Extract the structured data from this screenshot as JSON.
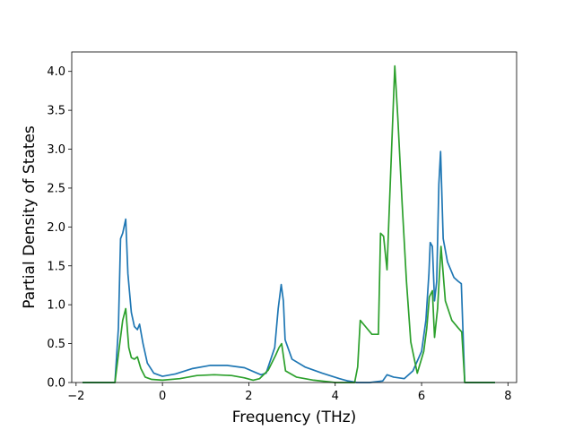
{
  "chart_data": {
    "type": "line",
    "title": "",
    "xlabel": "Frequency (THz)",
    "ylabel": "Partial Density of States",
    "xlim": [
      -2.1,
      8.2
    ],
    "ylim": [
      0,
      4.25
    ],
    "xticks": [
      -2,
      0,
      2,
      4,
      6,
      8
    ],
    "xtick_labels": [
      "−2",
      "0",
      "2",
      "4",
      "6",
      "8"
    ],
    "yticks": [
      0,
      0.5,
      1,
      1.5,
      2,
      2.5,
      3,
      3.5,
      4
    ],
    "ytick_labels": [
      "0.0",
      "0.5",
      "1.0",
      "1.5",
      "2.0",
      "2.5",
      "3.0",
      "3.5",
      "4.0"
    ],
    "grid": false,
    "series": [
      {
        "color": "#1f77b4",
        "x": [
          -1.85,
          -1.1,
          -1.02,
          -0.97,
          -0.92,
          -0.85,
          -0.8,
          -0.72,
          -0.65,
          -0.58,
          -0.53,
          -0.45,
          -0.35,
          -0.2,
          0,
          0.3,
          0.7,
          1.1,
          1.5,
          1.9,
          2.15,
          2.28,
          2.4,
          2.6,
          2.68,
          2.75,
          2.8,
          2.84,
          3.0,
          3.3,
          3.7,
          4.1,
          4.3,
          4.5,
          4.8,
          5.1,
          5.2,
          5.35,
          5.6,
          5.8,
          6.0,
          6.1,
          6.17,
          6.2,
          6.25,
          6.3,
          6.35,
          6.4,
          6.44,
          6.5,
          6.6,
          6.75,
          6.85,
          6.92,
          7.0,
          7.7
        ],
        "y": [
          0,
          0,
          0.7,
          1.85,
          1.92,
          2.1,
          1.4,
          0.9,
          0.72,
          0.68,
          0.75,
          0.5,
          0.25,
          0.12,
          0.08,
          0.11,
          0.18,
          0.22,
          0.22,
          0.19,
          0.13,
          0.1,
          0.12,
          0.45,
          0.95,
          1.26,
          1.05,
          0.55,
          0.3,
          0.2,
          0.12,
          0.05,
          0.02,
          0,
          0,
          0.02,
          0.1,
          0.07,
          0.05,
          0.15,
          0.4,
          0.8,
          1.4,
          1.8,
          1.75,
          1.05,
          1.3,
          2.55,
          2.97,
          1.85,
          1.55,
          1.35,
          1.3,
          1.27,
          0,
          0
        ]
      },
      {
        "color": "#2ca02c",
        "x": [
          -1.85,
          -1.1,
          -1.0,
          -0.92,
          -0.85,
          -0.78,
          -0.72,
          -0.65,
          -0.58,
          -0.5,
          -0.4,
          -0.25,
          0,
          0.4,
          0.8,
          1.2,
          1.6,
          1.9,
          2.1,
          2.25,
          2.45,
          2.62,
          2.7,
          2.76,
          2.85,
          3.1,
          3.5,
          4.0,
          4.45,
          4.52,
          4.58,
          4.7,
          4.85,
          5.0,
          5.05,
          5.12,
          5.2,
          5.25,
          5.38,
          5.45,
          5.55,
          5.65,
          5.75,
          5.9,
          6.05,
          6.12,
          6.18,
          6.25,
          6.3,
          6.37,
          6.45,
          6.55,
          6.7,
          6.85,
          6.93,
          7.0,
          7.7
        ],
        "y": [
          0,
          0,
          0.45,
          0.8,
          0.95,
          0.45,
          0.32,
          0.3,
          0.33,
          0.18,
          0.07,
          0.04,
          0.03,
          0.05,
          0.09,
          0.1,
          0.09,
          0.06,
          0.03,
          0.05,
          0.16,
          0.35,
          0.45,
          0.5,
          0.15,
          0.07,
          0.03,
          0,
          0,
          0.2,
          0.8,
          0.72,
          0.62,
          0.62,
          1.92,
          1.88,
          1.45,
          2.2,
          4.07,
          3.4,
          2.3,
          1.3,
          0.52,
          0.12,
          0.4,
          0.7,
          1.1,
          1.18,
          0.58,
          0.95,
          1.75,
          1.05,
          0.8,
          0.7,
          0.65,
          0,
          0
        ]
      }
    ]
  }
}
